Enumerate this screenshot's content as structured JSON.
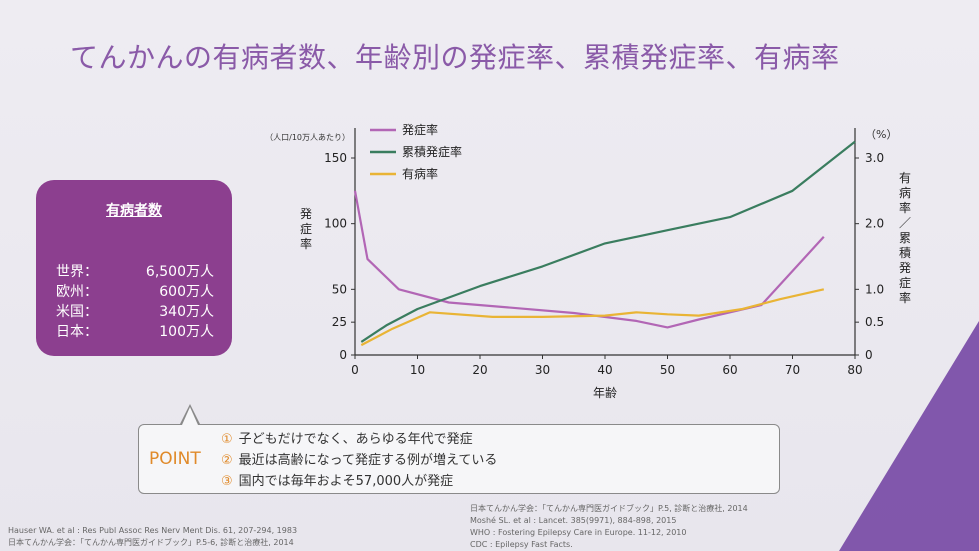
{
  "title": "てんかんの有病者数、年齢別の発症率、累積発症率、有病率",
  "panel": {
    "heading": "有病者数",
    "rows": [
      {
        "region": "世界：",
        "value": "6,500万人"
      },
      {
        "region": "欧州：",
        "value": "600万人"
      },
      {
        "region": "米国：",
        "value": "340万人"
      },
      {
        "region": "日本：",
        "value": "100万人"
      }
    ]
  },
  "point": {
    "label": "POINT",
    "items": [
      {
        "num": "①",
        "text": "子どもだけでなく、あらゆる年代で発症"
      },
      {
        "num": "②",
        "text": "最近は高齢になって発症する例が増えている"
      },
      {
        "num": "③",
        "text": "国内では毎年およそ57,000人が発症"
      }
    ]
  },
  "references_left": [
    "Hauser WA. et al : Res Publ Assoc Res Nerv Ment Dis. 61, 207-294, 1983",
    "日本てんかん学会：「てんかん専門医ガイドブック」P.5-6, 診断と治療社, 2014"
  ],
  "references_right": [
    "日本てんかん学会：「てんかん専門医ガイドブック」P.5, 診断と治療社, 2014",
    "Moshé SL. et al : Lancet. 385(9971), 884-898, 2015",
    "WHO : Fostering Epilepsy Care in Europe. 11-12, 2010",
    "CDC : Epilepsy Fast Facts."
  ],
  "chart_data": {
    "type": "line",
    "xlabel": "年齢",
    "ylabel_left": "発症率",
    "ylabel_left_unit": "（人口/10万人あたり）",
    "ylabel_right": "有病率／累積発症率",
    "ylabel_right_unit": "（%）",
    "xlim": [
      0,
      80
    ],
    "ylim_left": [
      0,
      150
    ],
    "ylim_right": [
      0,
      3.0
    ],
    "x_ticks": [
      0,
      10,
      20,
      30,
      40,
      50,
      60,
      70,
      80
    ],
    "y_left_ticks": [
      0,
      25,
      50,
      100,
      150
    ],
    "y_right_ticks": [
      "0",
      "0.5",
      "1.0",
      "2.0",
      "3.0"
    ],
    "legend_position": "top-left",
    "series": [
      {
        "name": "発症率",
        "axis": "left",
        "color": "#b266b5",
        "x": [
          0,
          2,
          7,
          15,
          25,
          35,
          45,
          50,
          55,
          65,
          75
        ],
        "y": [
          125,
          73,
          50,
          40,
          36,
          32,
          26,
          21,
          27,
          38,
          90
        ]
      },
      {
        "name": "累積発症率",
        "axis": "right",
        "color": "#3a7d5f",
        "x": [
          1,
          5,
          10,
          20,
          30,
          40,
          50,
          60,
          70,
          80
        ],
        "y": [
          0.2,
          0.45,
          0.7,
          1.05,
          1.35,
          1.7,
          1.9,
          2.1,
          2.5,
          3.25
        ]
      },
      {
        "name": "有病率",
        "axis": "right",
        "color": "#e9b435",
        "x": [
          1,
          6,
          12,
          22,
          30,
          40,
          45,
          50,
          55,
          62,
          68,
          75
        ],
        "y": [
          0.15,
          0.4,
          0.65,
          0.58,
          0.58,
          0.6,
          0.65,
          0.62,
          0.6,
          0.7,
          0.85,
          1.0
        ]
      }
    ]
  }
}
